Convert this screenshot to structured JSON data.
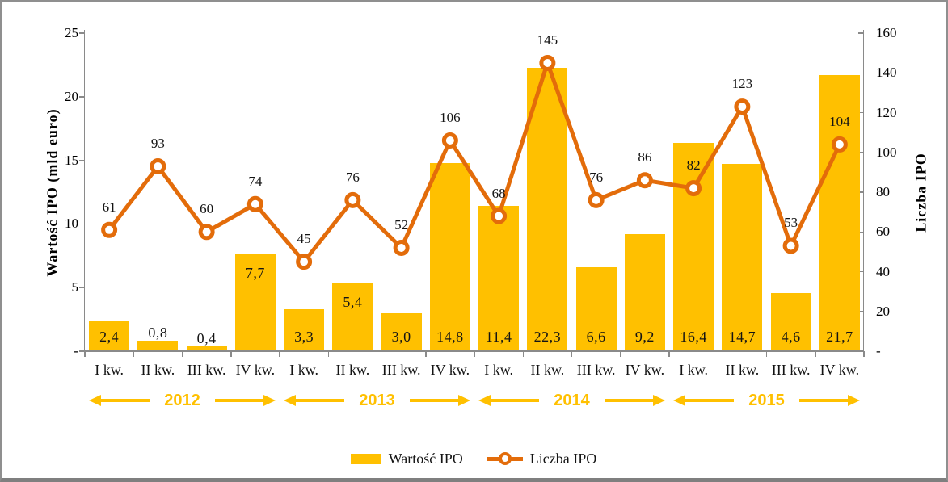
{
  "chart_data": {
    "type": "combo-bar-line",
    "categories": [
      "I kw.",
      "II kw.",
      "III kw.",
      "IV kw.",
      "I kw.",
      "II kw.",
      "III kw.",
      "IV kw.",
      "I kw.",
      "II kw.",
      "III kw.",
      "IV kw.",
      "I kw.",
      "II kw.",
      "III kw.",
      "IV kw."
    ],
    "year_groups": [
      {
        "label": "2012",
        "span": 4
      },
      {
        "label": "2013",
        "span": 4
      },
      {
        "label": "2014",
        "span": 4
      },
      {
        "label": "2015",
        "span": 4
      }
    ],
    "series": [
      {
        "name": "Wartość IPO",
        "type": "bar",
        "axis": "left",
        "color": "#FFC000",
        "values": [
          2.4,
          0.8,
          0.4,
          7.7,
          3.3,
          5.4,
          3.0,
          14.8,
          11.4,
          22.3,
          6.6,
          9.2,
          16.4,
          14.7,
          4.6,
          21.7
        ],
        "labels": [
          "2,4",
          "0,8",
          "0,4",
          "7,7",
          "3,3",
          "5,4",
          "3,0",
          "14,8",
          "11,4",
          "22,3",
          "6,6",
          "9,2",
          "16,4",
          "14,7",
          "4,6",
          "21,7"
        ],
        "label_pos": [
          "base",
          "above",
          "above",
          "inside-top",
          "base",
          "inside-top",
          "base",
          "base",
          "base",
          "base",
          "base",
          "base",
          "base",
          "base",
          "base",
          "base"
        ]
      },
      {
        "name": "Liczba IPO",
        "type": "line",
        "axis": "right",
        "color": "#E36C0A",
        "marker": "circle",
        "values": [
          61,
          93,
          60,
          74,
          45,
          76,
          52,
          106,
          68,
          145,
          76,
          86,
          82,
          123,
          53,
          104
        ],
        "labels": [
          "61",
          "93",
          "60",
          "74",
          "45",
          "76",
          "52",
          "106",
          "68",
          "145",
          "76",
          "86",
          "82",
          "123",
          "53",
          "104"
        ]
      }
    ],
    "left_axis": {
      "title": "Wartość IPO (mld euro)",
      "min": 0,
      "max": 25,
      "step": 5,
      "tick_labels": [
        "-",
        "5",
        "10",
        "15",
        "20",
        "25"
      ]
    },
    "right_axis": {
      "title": "Liczba IPO",
      "min": 0,
      "max": 160,
      "step": 20,
      "tick_labels": [
        "-",
        "20",
        "40",
        "60",
        "80",
        "100",
        "120",
        "140",
        "160"
      ]
    },
    "legend": [
      {
        "label": "Wartość IPO",
        "swatch": "bar",
        "color": "#FFC000"
      },
      {
        "label": "Liczba IPO",
        "swatch": "line",
        "color": "#E36C0A"
      }
    ],
    "grid": false,
    "legend_position": "bottom-center",
    "colors": {
      "bar": "#FFC000",
      "line": "#E36C0A",
      "axis": "#8a8a8a",
      "year": "#FFC000",
      "text": "#141414"
    }
  }
}
